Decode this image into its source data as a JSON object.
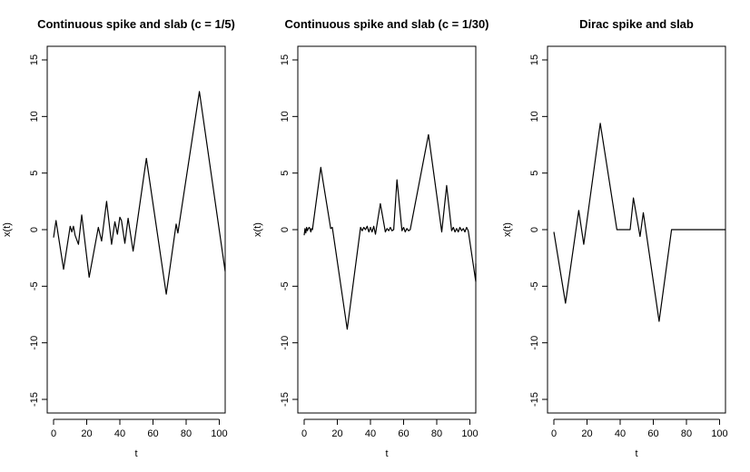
{
  "chart_data": [
    {
      "type": "line",
      "title": "Continuous spike and slab (c = 1/5)",
      "xlabel": "t",
      "ylabel": "x(t)",
      "xlim": [
        0,
        104
      ],
      "ylim": [
        -15,
        15
      ],
      "xticks": [
        0,
        20,
        40,
        60,
        80,
        100
      ],
      "yticks": [
        -15,
        -10,
        -5,
        0,
        5,
        10,
        15
      ],
      "x": [
        0,
        1.5,
        6,
        10,
        11,
        12,
        13,
        15,
        17,
        21.5,
        27,
        29,
        32,
        35,
        37,
        38.5,
        40,
        41,
        43,
        45,
        48,
        56,
        68,
        74,
        75,
        88,
        104
      ],
      "y": [
        -0.7,
        0.8,
        -3.5,
        0.3,
        -0.2,
        0.3,
        -0.5,
        -1.3,
        1.3,
        -4.2,
        0.2,
        -1.0,
        2.5,
        -1.3,
        0.7,
        -0.4,
        1.1,
        0.8,
        -1.2,
        1.0,
        -1.9,
        6.3,
        -5.7,
        0.5,
        -0.3,
        12.2,
        -3.7
      ]
    },
    {
      "type": "line",
      "title": "Continuous spike and slab (c = 1/30)",
      "xlabel": "t",
      "ylabel": "x(t)",
      "xlim": [
        0,
        104
      ],
      "ylim": [
        -15,
        15
      ],
      "xticks": [
        0,
        20,
        40,
        60,
        80,
        100
      ],
      "yticks": [
        -15,
        -10,
        -5,
        0,
        5,
        10,
        15
      ],
      "x": [
        0,
        0.5,
        1,
        1.5,
        2,
        2.5,
        3,
        3.5,
        4,
        4.5,
        5,
        10,
        16,
        17,
        26,
        34,
        35,
        36,
        37,
        38,
        39,
        40,
        41,
        42,
        43,
        46,
        49,
        50,
        51,
        52,
        53,
        54,
        56,
        59,
        60,
        61,
        62,
        63,
        64,
        75,
        83,
        86,
        89,
        90,
        91,
        92,
        93,
        94,
        95,
        96,
        97,
        98,
        99,
        104,
        104.5
      ],
      "y": [
        -0.5,
        0.1,
        -0.3,
        0.2,
        -0.1,
        0.1,
        0.2,
        0.1,
        -0.2,
        0.1,
        0.0,
        5.5,
        0.1,
        0.2,
        -8.8,
        0.2,
        -0.1,
        0.2,
        0.0,
        0.3,
        -0.2,
        0.2,
        -0.2,
        0.3,
        -0.4,
        2.3,
        -0.2,
        0.1,
        -0.1,
        0.2,
        -0.1,
        0.0,
        4.4,
        -0.1,
        0.2,
        -0.2,
        0.1,
        -0.1,
        0.0,
        8.4,
        -0.2,
        3.9,
        -0.1,
        0.2,
        -0.2,
        0.1,
        -0.2,
        0.2,
        -0.1,
        0.1,
        -0.2,
        0.2,
        -0.1,
        -4.6,
        -3.0
      ]
    },
    {
      "type": "line",
      "title": "Dirac spike and slab",
      "xlabel": "t",
      "ylabel": "x(t)",
      "xlim": [
        0,
        104
      ],
      "ylim": [
        -15,
        15
      ],
      "xticks": [
        0,
        20,
        40,
        60,
        80,
        100
      ],
      "yticks": [
        -15,
        -10,
        -5,
        0,
        5,
        10,
        15
      ],
      "x": [
        0,
        7,
        15,
        18,
        28,
        38,
        46,
        48,
        52,
        54,
        63.5,
        71,
        104
      ],
      "y": [
        -0.2,
        -6.5,
        1.7,
        -1.3,
        9.4,
        0.0,
        0.0,
        2.8,
        -0.6,
        1.5,
        -8.1,
        0.0,
        0.0
      ]
    }
  ]
}
